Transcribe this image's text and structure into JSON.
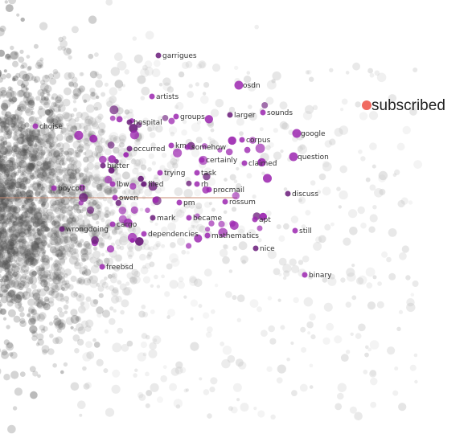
{
  "embedding_view": {
    "selected_word": "subscribed",
    "colors": {
      "background_points": "#555555",
      "neighbor_points": "#9c27b0",
      "neighbor_points_dark": "#6a1b7a",
      "selected_point": "#f06a60",
      "axis_line": "#c98a70",
      "label_text": "#333333"
    },
    "neighbors": [
      "garrigues",
      "osdn",
      "artists",
      "sounds",
      "larger",
      "groups",
      "google",
      "choise",
      "hospital",
      "corpus",
      "somehow",
      "km",
      "occurred",
      "question",
      "certainly",
      "claimed",
      "butter",
      "trying",
      "task",
      "lbw",
      "filed",
      "rh",
      "boycott",
      "procmail",
      "discuss",
      "owen",
      "pm",
      "rossum",
      "mark",
      "became",
      "apt",
      "cargo",
      "wrongdoing",
      "dependencies",
      "still",
      "mathematics",
      "nice",
      "freebsd",
      "binary"
    ]
  }
}
